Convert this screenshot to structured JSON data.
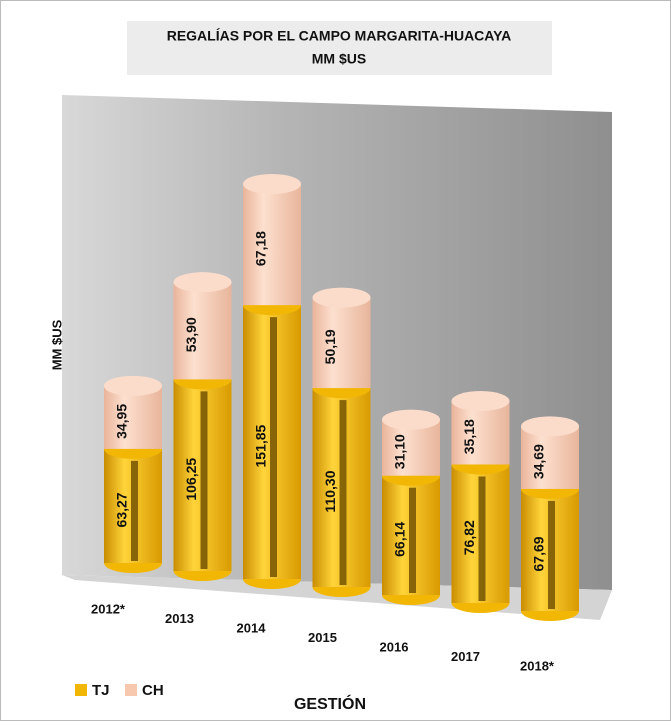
{
  "chart_data": {
    "type": "stacked-cylinder",
    "title": "REGALÍAS POR EL CAMPO MARGARITA-HUACAYA",
    "subtitle": "MM $US",
    "y_label": "MM $US",
    "x_label": "GESTIÓN",
    "categories": [
      "2012*",
      "2013",
      "2014",
      "2015",
      "2016",
      "2017",
      "2018*"
    ],
    "series": [
      {
        "name": "TJ",
        "color": "#f2b705",
        "values": [
          63.27,
          106.25,
          151.85,
          110.3,
          66.14,
          76.82,
          67.69
        ],
        "value_labels": [
          "63,27",
          "106,25",
          "151,85",
          "110,30",
          "66,14",
          "76,82",
          "67,69"
        ]
      },
      {
        "name": "CH",
        "color": "#f7c8ae",
        "values": [
          34.95,
          53.9,
          67.18,
          50.19,
          31.1,
          35.18,
          34.69
        ],
        "value_labels": [
          "34,95",
          "53,90",
          "67,18",
          "50,19",
          "31,10",
          "35,18",
          "34,69"
        ]
      }
    ],
    "legend": "bottom-left"
  }
}
